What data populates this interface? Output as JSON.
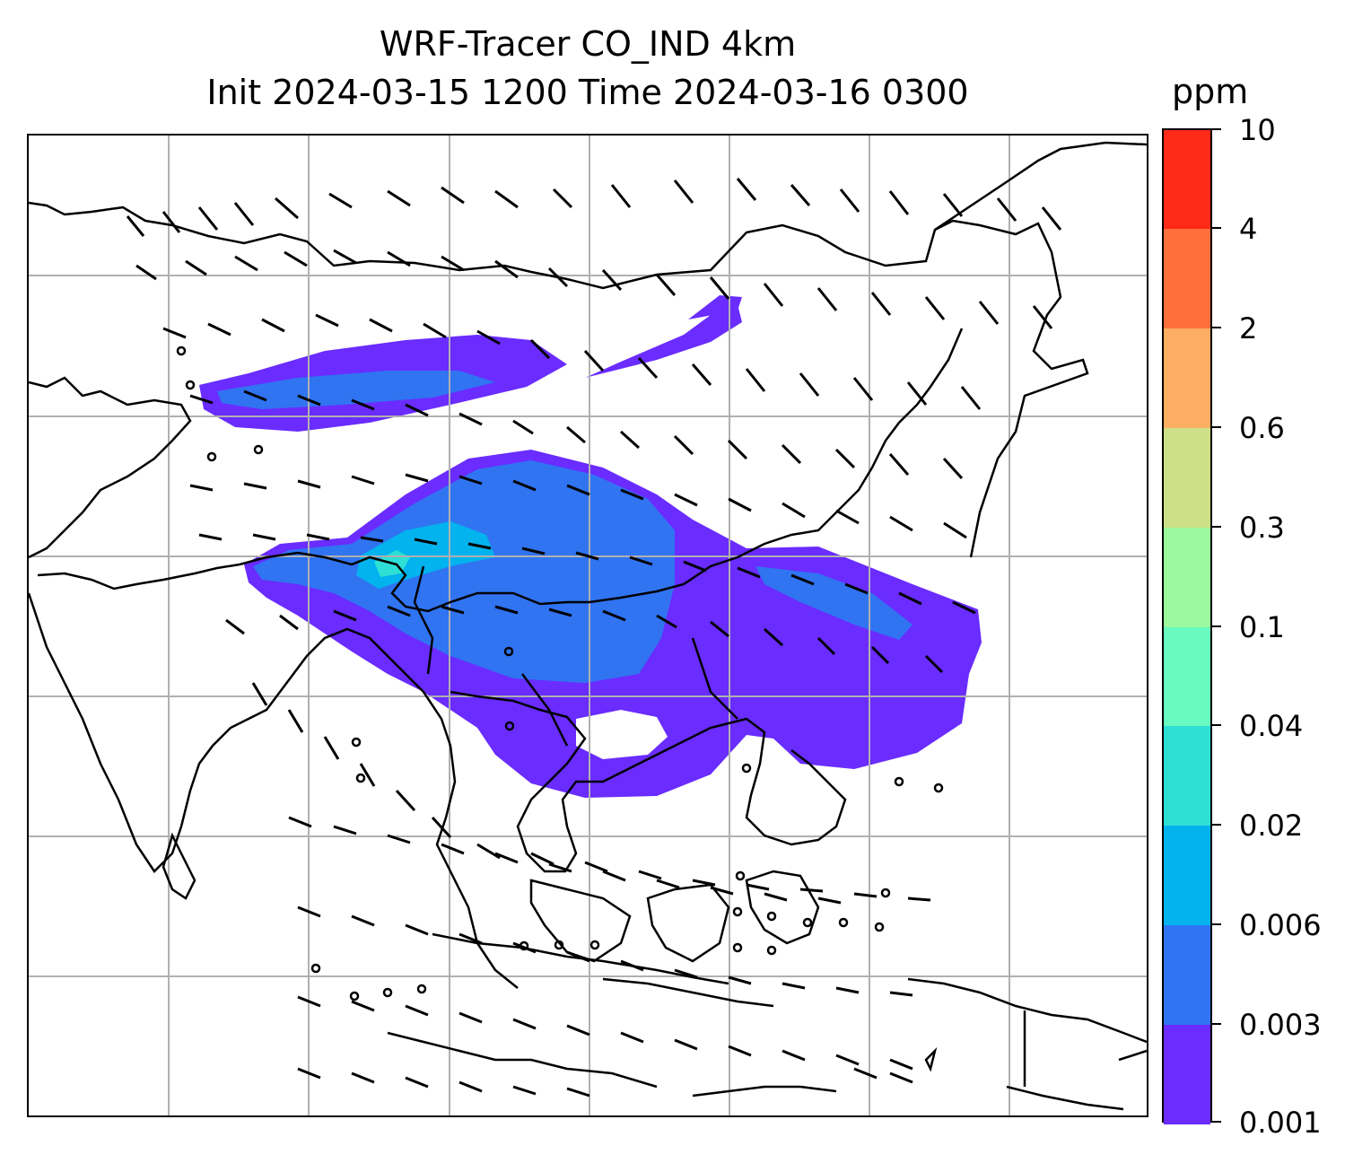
{
  "title": {
    "line1": "WRF-Tracer CO_IND 4km",
    "line2": "Init 2024-03-15 1200 Time 2024-03-16 0300"
  },
  "colorbar": {
    "unit": "ppm",
    "levels": [
      "0.001",
      "0.003",
      "0.006",
      "0.02",
      "0.04",
      "0.1",
      "0.3",
      "0.6",
      "2",
      "4",
      "10"
    ],
    "colors": [
      "#6a2cff",
      "#3074f2",
      "#03b3ee",
      "#2edfd5",
      "#67fbbf",
      "#9cf99e",
      "#cde087",
      "#fcae62",
      "#ff6f3c",
      "#ff2a18"
    ]
  },
  "map": {
    "gridlines": true,
    "tracer_colors": {
      "light": "#6a2cff",
      "mid": "#3074f2",
      "high": "#03b3ee",
      "peak": "#2edfd5"
    }
  }
}
